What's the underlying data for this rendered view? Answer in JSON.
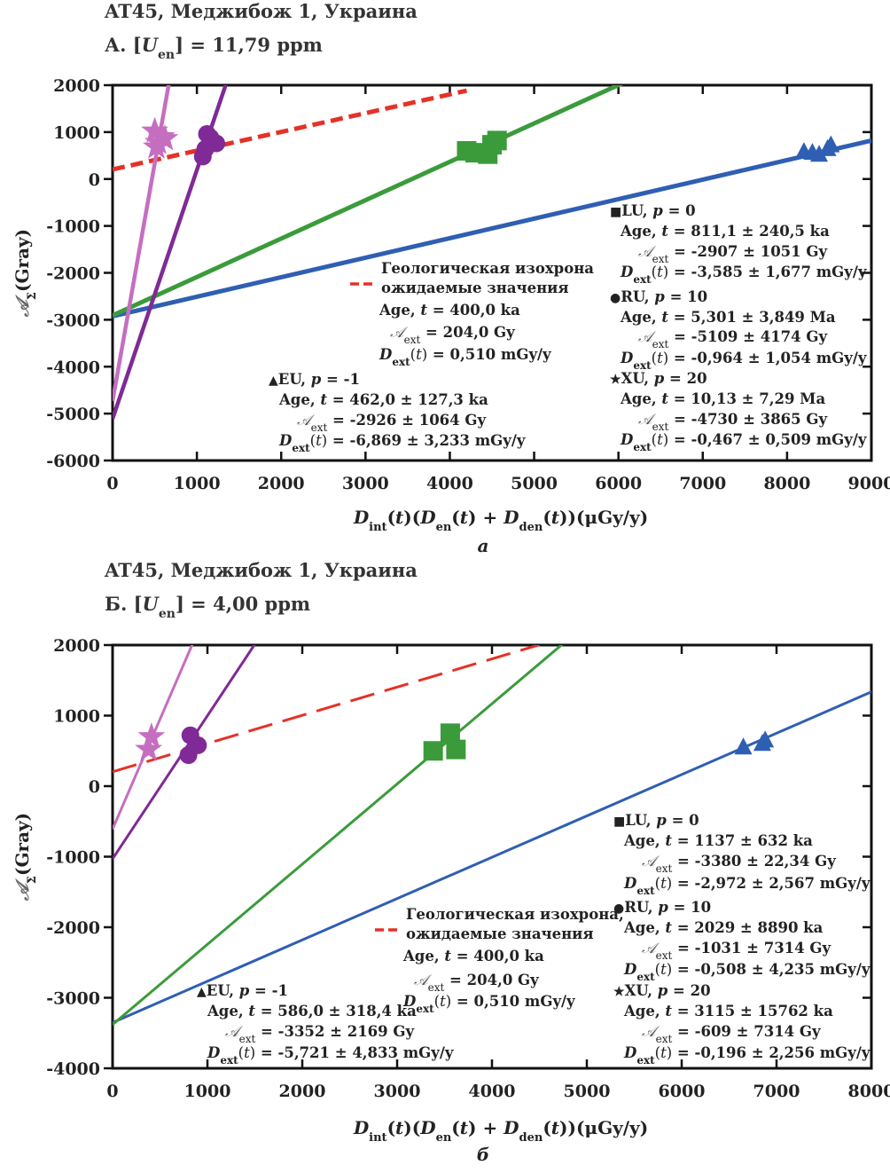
{
  "chart_data": [
    {
      "type": "scatter",
      "title": "AT45, Меджибож 1, Украина",
      "subtitle": "А. [U_en] = 11,79 ppm",
      "subtitle_parts": {
        "prefix": "А. [",
        "var": "U",
        "sub": "en",
        "suffix": "] = 11,79 ppm"
      },
      "xlabel": "D_int(t)(D_en(t) + D_den(t))(μGy/y)",
      "ylabel": "A_Σ(Gray)",
      "panel_label": "а",
      "xlim": [
        0,
        9000
      ],
      "ylim": [
        -6000,
        2000
      ],
      "xticks": [
        0,
        1000,
        2000,
        3000,
        4000,
        5000,
        6000,
        7000,
        8000,
        9000
      ],
      "yticks": [
        2000,
        1000,
        0,
        -1000,
        -2000,
        -3000,
        -4000,
        -5000,
        -6000
      ],
      "series": [
        {
          "name": "EU",
          "p": "-1",
          "color": "#2f5fb3",
          "marker": "triangle",
          "line_width": 5,
          "line": {
            "intercept": -2926,
            "slope": 0.4162
          },
          "points": [
            [
              8200,
              580
            ],
            [
              8300,
              560
            ],
            [
              8380,
              520
            ],
            [
              8480,
              640
            ],
            [
              8520,
              720
            ]
          ],
          "annotation": {
            "head": "EU, p = -1",
            "age": "Age, t = 462,0 ± 127,3 ka",
            "aext": " = -2926 ± 1064 Gy",
            "dext": " = -6,869 ± 3,233 mGy/y"
          }
        },
        {
          "name": "LU",
          "p": "0",
          "color": "#3b9b3b",
          "marker": "square",
          "line_width": 5,
          "line": {
            "intercept": -2907,
            "slope": 0.8185
          },
          "points": [
            [
              4200,
              600
            ],
            [
              4300,
              560
            ],
            [
              4450,
              530
            ],
            [
              4500,
              730
            ],
            [
              4560,
              820
            ]
          ],
          "annotation": {
            "head": "LU, p = 0",
            "age": "Age, t = 811,1 ± 240,5 ka",
            "aext": " = -2907 ± 1051 Gy",
            "dext": " = -3,585 ± 1,677 mGy/y"
          }
        },
        {
          "name": "RU",
          "p": "10",
          "color": "#7f2a96",
          "marker": "circle",
          "line_width": 4.5,
          "line": {
            "intercept": -5109,
            "slope": 5.301
          },
          "points": [
            [
              1070,
              480
            ],
            [
              1120,
              960
            ],
            [
              1160,
              880
            ],
            [
              1230,
              760
            ],
            [
              1100,
              640
            ]
          ],
          "annotation": {
            "head": "RU, p = 10",
            "age": "Age, t = 5,301 ± 3,849 Ma",
            "aext": " = -5109 ± 4174 Gy",
            "dext": " = -0,964 ± 1,054 mGy/y"
          }
        },
        {
          "name": "XU",
          "p": "20",
          "color": "#c56ec0",
          "marker": "star",
          "line_width": 4.5,
          "line": {
            "intercept": -4730,
            "slope": 10.13
          },
          "points": [
            [
              500,
              1020
            ],
            [
              540,
              780
            ],
            [
              580,
              900
            ],
            [
              620,
              860
            ],
            [
              520,
              680
            ]
          ],
          "annotation": {
            "head": "XU, p = 20",
            "age": "Age, t = 10,13 ± 7,29 Ma",
            "aext": " = -4730 ± 3865 Gy",
            "dext": " = -0,467 ± 0,509 mGy/y"
          }
        }
      ],
      "isochron": {
        "color": "#e53127",
        "intercept": 204,
        "slope": 0.4,
        "x_end": 4200,
        "label1": "Геологическая изохрона",
        "label2": "ожидаемые значения",
        "age": "Age, t = 400,0 ka",
        "aext": " = 204,0 Gy",
        "dext": " = 0,510 mGy/y"
      }
    },
    {
      "type": "scatter",
      "title": "AT45, Меджибож 1, Украина",
      "subtitle": "Б. [U_en] = 4,00 ppm",
      "subtitle_parts": {
        "prefix": "Б. [",
        "var": "U",
        "sub": "en",
        "suffix": "] = 4,00 ppm"
      },
      "xlabel": "D_int(t)(D_en(t) + D_den(t))(μGy/y)",
      "ylabel": "A_Σ(Gray)",
      "panel_label": "б",
      "xlim": [
        0,
        8000
      ],
      "ylim": [
        -4000,
        2000
      ],
      "xticks": [
        0,
        1000,
        2000,
        3000,
        4000,
        5000,
        6000,
        7000,
        8000
      ],
      "yticks": [
        2000,
        1000,
        0,
        -1000,
        -2000,
        -3000,
        -4000
      ],
      "series": [
        {
          "name": "EU",
          "p": "-1",
          "color": "#2f5fb3",
          "marker": "triangle",
          "line_width": 3,
          "line": {
            "intercept": -3352,
            "slope": 0.586
          },
          "points": [
            [
              6650,
              550
            ],
            [
              6850,
              600
            ],
            [
              6880,
              650
            ]
          ],
          "annotation": {
            "head": "EU, p = -1",
            "age": "Age, t = 586,0 ± 318,4 ka",
            "aext": " = -3352 ± 2169 Gy",
            "dext": " = -5,721 ± 4,833 mGy/y"
          }
        },
        {
          "name": "LU",
          "p": "0",
          "color": "#3b9b3b",
          "marker": "square",
          "line_width": 3,
          "line": {
            "intercept": -3380,
            "slope": 1.137
          },
          "points": [
            [
              3380,
              500
            ],
            [
              3560,
              750
            ],
            [
              3620,
              520
            ]
          ],
          "annotation": {
            "head": "LU, p = 0",
            "age": "Age, t = 1137 ± 632 ka",
            "aext": " = -3380 ± 22,34 Gy",
            "dext": " = -2,972 ± 2,567 mGy/y"
          }
        },
        {
          "name": "RU",
          "p": "10",
          "color": "#7f2a96",
          "marker": "circle",
          "line_width": 3,
          "line": {
            "intercept": -1031,
            "slope": 2.029
          },
          "points": [
            [
              800,
              440
            ],
            [
              820,
              720
            ],
            [
              900,
              580
            ]
          ],
          "annotation": {
            "head": "RU, p = 10",
            "age": "Age, t = 2029 ± 8890 ka",
            "aext": " = -1031 ± 7314 Gy",
            "dext": " = -0,508 ± 4,235 mGy/y"
          }
        },
        {
          "name": "XU",
          "p": "20",
          "color": "#c56ec0",
          "marker": "star",
          "line_width": 3,
          "line": {
            "intercept": -609,
            "slope": 3.115
          },
          "points": [
            [
              380,
              520
            ],
            [
              410,
              700
            ]
          ],
          "annotation": {
            "head": "XU, p = 20",
            "age": "Age, t = 3115 ± 15762 ka",
            "aext": " = -609 ± 7314 Gy",
            "dext": " = -0,196 ± 2,256 mGy/y"
          }
        }
      ],
      "isochron": {
        "color": "#e53127",
        "intercept": 204,
        "slope": 0.4,
        "x_end": 4500,
        "label1": "Геологическая изохрона,",
        "label2": "ожидаемые значения",
        "age": "Age, t = 400,0 ka",
        "aext": " = 204,0 Gy",
        "dext": " = 0,510 mGy/y"
      }
    }
  ]
}
